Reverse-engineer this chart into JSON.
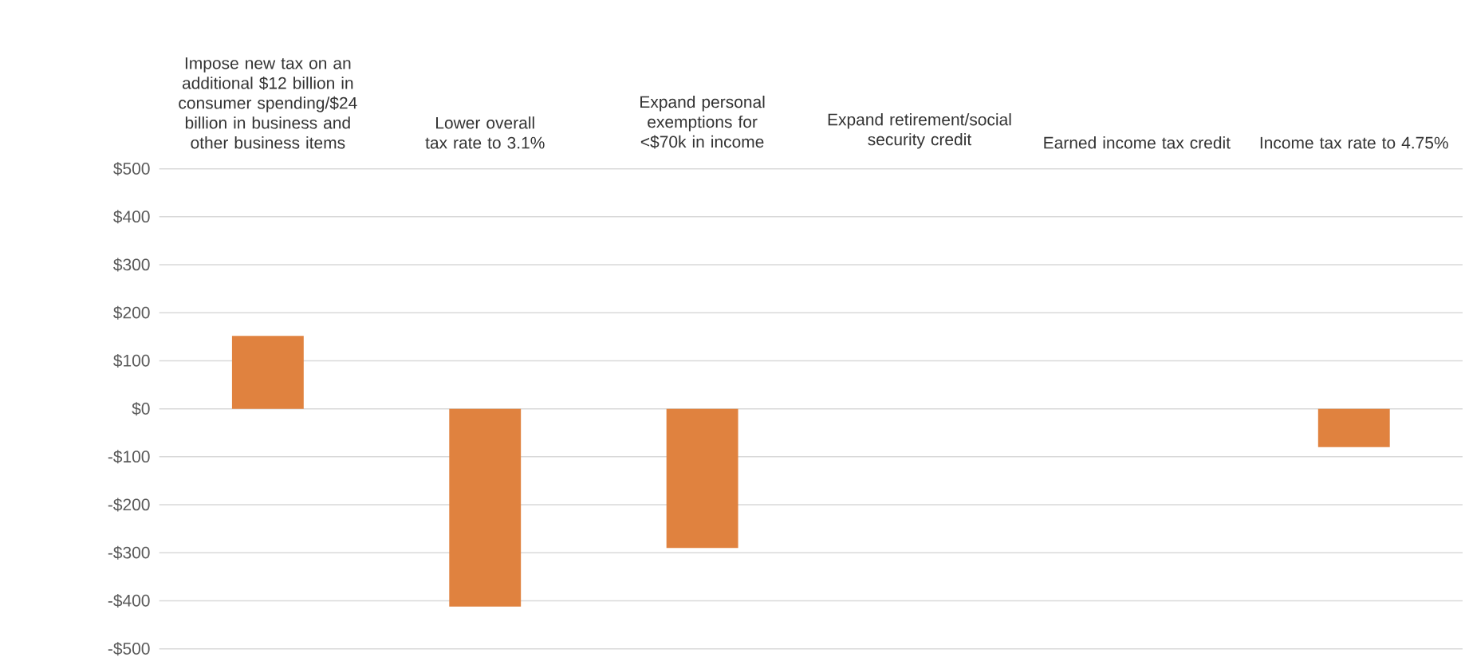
{
  "chart_data": {
    "type": "bar",
    "categories": [
      "Impose new tax on an additional $12 billion in consumer spending/$24 billion in business and other business items",
      "Lower overall tax rate to 3.1%",
      "Expand personal exemptions for <$70k in income",
      "Expand retirement/social security credit",
      "Earned income tax credit",
      "Income tax rate to 4.75%"
    ],
    "values": [
      152,
      -412,
      -290,
      0,
      0,
      -80
    ],
    "color": "#e0823f",
    "ylim": [
      -500,
      500
    ],
    "yticks": [
      {
        "value": 500,
        "label": "$500"
      },
      {
        "value": 400,
        "label": "$400"
      },
      {
        "value": 300,
        "label": "$300"
      },
      {
        "value": 200,
        "label": "$200"
      },
      {
        "value": 100,
        "label": "$100"
      },
      {
        "value": 0,
        "label": "$0"
      },
      {
        "value": -100,
        "label": "-$100"
      },
      {
        "value": -200,
        "label": "-$200"
      },
      {
        "value": -300,
        "label": "-$300"
      },
      {
        "value": -400,
        "label": "-$400"
      },
      {
        "value": -500,
        "label": "-$500"
      }
    ],
    "grid": "y"
  }
}
